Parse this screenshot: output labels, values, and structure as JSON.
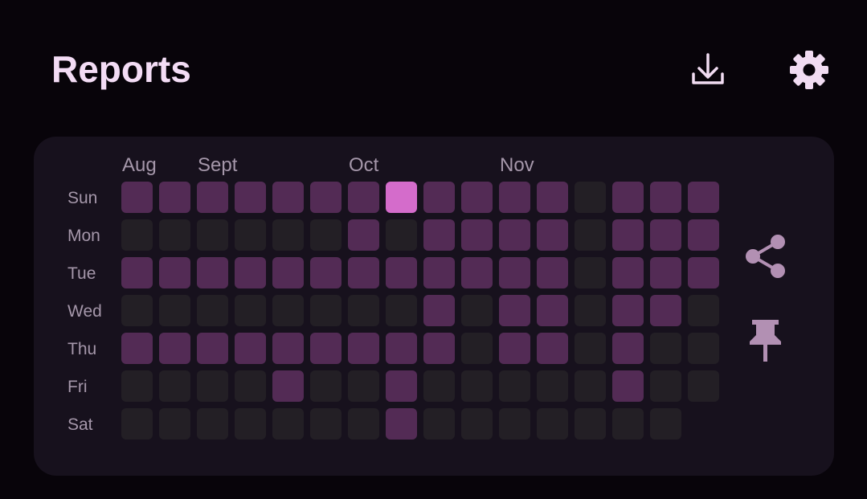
{
  "header": {
    "title": "Reports"
  },
  "heatmap": {
    "months": [
      "Aug",
      null,
      "Sept",
      null,
      null,
      null,
      "Oct",
      null,
      null,
      null,
      "Nov",
      null,
      null,
      null,
      null,
      null
    ],
    "days": [
      "Sun",
      "Mon",
      "Tue",
      "Wed",
      "Thu",
      "Fri",
      "Sat"
    ],
    "colors": [
      "#231f25",
      "#532b55",
      "#d46ccb"
    ],
    "rows": [
      [
        1,
        1,
        1,
        1,
        1,
        1,
        1,
        2,
        1,
        1,
        1,
        1,
        0,
        1,
        1,
        1
      ],
      [
        0,
        0,
        0,
        0,
        0,
        0,
        1,
        0,
        1,
        1,
        1,
        1,
        0,
        1,
        1,
        1
      ],
      [
        1,
        1,
        1,
        1,
        1,
        1,
        1,
        1,
        1,
        1,
        1,
        1,
        0,
        1,
        1,
        1
      ],
      [
        0,
        0,
        0,
        0,
        0,
        0,
        0,
        0,
        1,
        0,
        1,
        1,
        0,
        1,
        1,
        0
      ],
      [
        1,
        1,
        1,
        1,
        1,
        1,
        1,
        1,
        1,
        0,
        1,
        1,
        0,
        1,
        0,
        0
      ],
      [
        0,
        0,
        0,
        0,
        1,
        0,
        0,
        1,
        0,
        0,
        0,
        0,
        0,
        1,
        0,
        0
      ],
      [
        0,
        0,
        0,
        0,
        0,
        0,
        0,
        1,
        0,
        0,
        0,
        0,
        0,
        0,
        0,
        null
      ]
    ]
  }
}
